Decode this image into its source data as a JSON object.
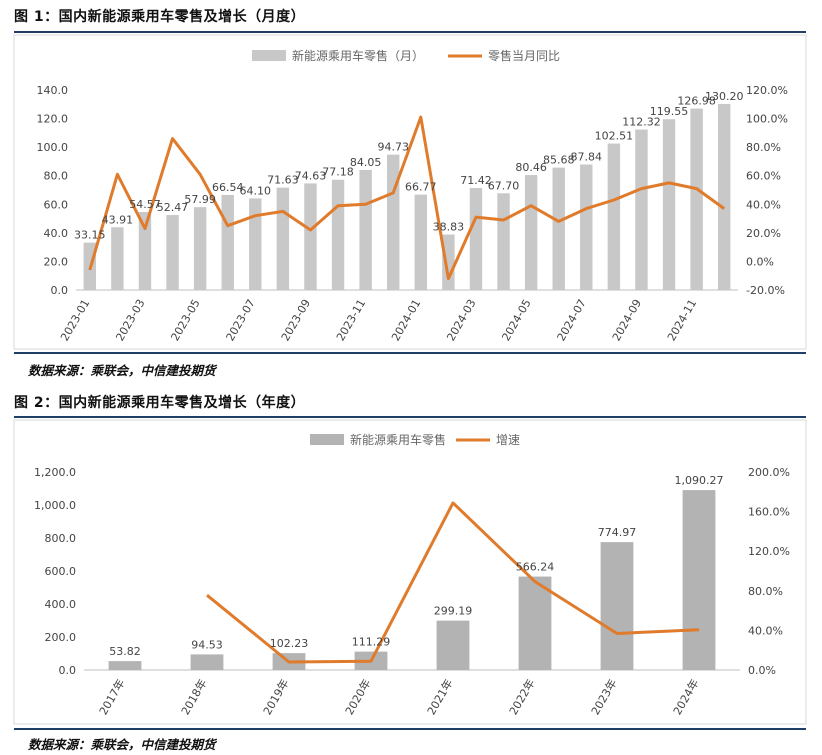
{
  "figure1": {
    "title": "图 1：国内新能源乘用车零售及增长（月度）",
    "source": "数据来源：乘联会，中信建投期货"
  },
  "figure2": {
    "title": "图 2：国内新能源乘用车零售及增长（年度）",
    "source": "数据来源：乘联会，中信建投期货"
  },
  "colors": {
    "bar": "#c8c8c8",
    "bar2": "#b3b3b3",
    "line": "#e07b2c",
    "rule": "#1f3f66"
  },
  "chart_data": [
    {
      "type": "bar",
      "legend_position": "top",
      "categories": [
        "2023-01",
        "2023-02",
        "2023-03",
        "2023-04",
        "2023-05",
        "2023-06",
        "2023-07",
        "2023-08",
        "2023-09",
        "2023-10",
        "2023-11",
        "2023-12",
        "2024-01",
        "2024-02",
        "2024-03",
        "2024-04",
        "2024-05",
        "2024-06",
        "2024-07",
        "2024-08",
        "2024-09",
        "2024-10",
        "2024-11",
        "2024-12"
      ],
      "x_tick_labels": [
        "2023-01",
        "2023-03",
        "2023-05",
        "2023-07",
        "2023-09",
        "2023-11",
        "2024-01",
        "2024-03",
        "2024-05",
        "2024-07",
        "2024-09",
        "2024-11"
      ],
      "series": [
        {
          "name": "新能源乘用车零售（月）",
          "type": "bar",
          "axis": "left",
          "values": [
            33.15,
            43.91,
            54.57,
            52.47,
            57.99,
            66.54,
            64.1,
            71.63,
            74.63,
            77.18,
            84.05,
            94.73,
            66.77,
            38.83,
            71.42,
            67.7,
            80.46,
            85.68,
            87.84,
            102.51,
            112.32,
            119.55,
            126.98,
            130.2
          ],
          "labels": [
            "33.15",
            "43.91",
            "54.57",
            "52.47",
            "57.99",
            "66.54",
            "64.10",
            "71.63",
            "74.63",
            "77.18",
            "84.05",
            "94.73",
            "66.77",
            "38.83",
            "71.42",
            "67.70",
            "80.46",
            "85.68",
            "87.84",
            "102.51",
            "112.32",
            "119.55",
            "126.98",
            "130.20"
          ]
        },
        {
          "name": "零售当月同比",
          "type": "line",
          "axis": "right",
          "values": [
            -6,
            61,
            23,
            86,
            61,
            25,
            32,
            35,
            22,
            39,
            40,
            48,
            101,
            -12,
            31,
            29,
            39,
            28,
            37,
            43,
            51,
            55,
            51,
            37
          ]
        }
      ],
      "ylim_left": [
        0,
        140
      ],
      "yticks_left": [
        "0.0",
        "20.0",
        "40.0",
        "60.0",
        "80.0",
        "100.0",
        "120.0",
        "140.0"
      ],
      "ylim_right": [
        -20,
        120
      ],
      "yticks_right": [
        "-20.0%",
        "0.0%",
        "20.0%",
        "40.0%",
        "60.0%",
        "80.0%",
        "100.0%",
        "120.0%"
      ],
      "grid": false
    },
    {
      "type": "bar",
      "legend_position": "top",
      "categories": [
        "2017年",
        "2018年",
        "2019年",
        "2020年",
        "2021年",
        "2022年",
        "2023年",
        "2024年"
      ],
      "series": [
        {
          "name": "新能源乘用车零售",
          "type": "bar",
          "axis": "left",
          "values": [
            53.82,
            94.53,
            102.23,
            111.29,
            299.19,
            566.24,
            774.97,
            1090.27
          ],
          "labels": [
            "53.82",
            "94.53",
            "102.23",
            "111.29",
            "299.19",
            "566.24",
            "774.97",
            "1,090.27"
          ]
        },
        {
          "name": "增速",
          "type": "line",
          "axis": "right",
          "values": [
            null,
            75.6,
            8.1,
            8.9,
            168.8,
            89.3,
            36.9,
            40.7
          ]
        }
      ],
      "ylim_left": [
        0,
        1200
      ],
      "yticks_left": [
        "0.0",
        "200.0",
        "400.0",
        "600.0",
        "800.0",
        "1,000.0",
        "1,200.0"
      ],
      "ylim_right": [
        0,
        200
      ],
      "yticks_right": [
        "0.0%",
        "40.0%",
        "80.0%",
        "120.0%",
        "160.0%",
        "200.0%"
      ],
      "grid": false
    }
  ]
}
